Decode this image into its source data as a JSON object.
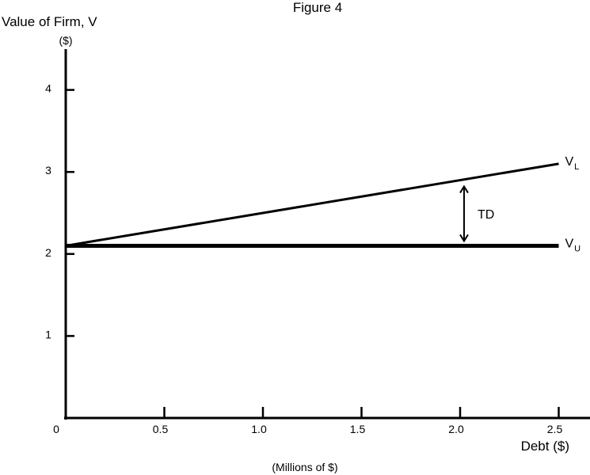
{
  "chart_data": {
    "type": "line",
    "title": "Figure 4",
    "ylabel": "Value of Firm, V",
    "ylabel_unit": "($)",
    "xlabel": "Debt ($)",
    "xlabel_unit": "(Millions of $)",
    "xlim": [
      0,
      2.6
    ],
    "ylim": [
      0,
      4.4
    ],
    "x_ticks": [
      0.5,
      1.0,
      1.5,
      2.0,
      2.5
    ],
    "x_tick_labels": [
      "0.5",
      "1.0",
      "1.5",
      "2.0",
      "2.5"
    ],
    "y_ticks": [
      1,
      2,
      3,
      4
    ],
    "y_tick_labels": [
      "1",
      "2",
      "3",
      "4"
    ],
    "origin_label": "0",
    "grid": false,
    "series": [
      {
        "name": "V",
        "subscript": "L",
        "x": [
          0,
          2.5
        ],
        "y": [
          2.1,
          3.1
        ]
      },
      {
        "name": "V",
        "subscript": "U",
        "x": [
          0,
          2.5
        ],
        "y": [
          2.1,
          2.1
        ]
      }
    ],
    "annotation": {
      "text": "TD",
      "x": 2.02,
      "y_from": 2.1,
      "y_to": 2.9
    }
  }
}
